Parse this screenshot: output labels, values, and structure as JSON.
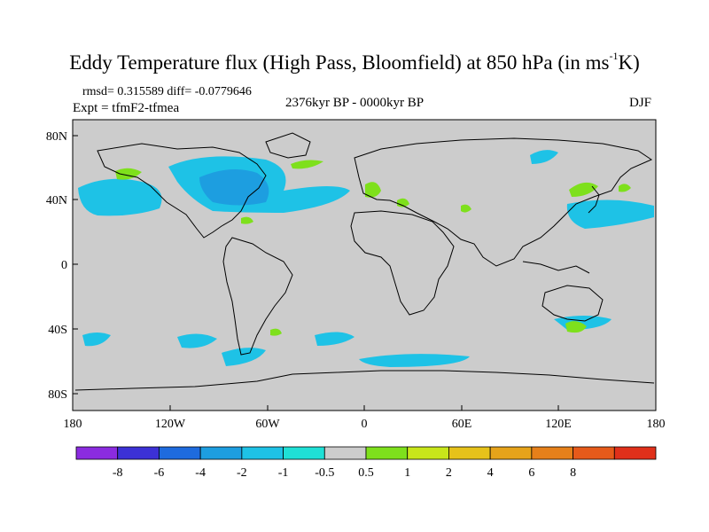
{
  "title": {
    "text_main": "Eddy Temperature flux (High Pass, Bloomfield) at 850 hPa (in ms",
    "superscript": "-1",
    "text_end": "K)"
  },
  "stats": "rmsd= 0.315589 diff= -0.0779646",
  "experiment": "Expt = tfmF2-tfmea",
  "period": "2376kyr BP - 0000kyr BP",
  "season": "DJF",
  "axes": {
    "x_ticks": [
      "180",
      "120W",
      "60W",
      "0",
      "60E",
      "120E",
      "180"
    ],
    "y_ticks": [
      "80N",
      "40N",
      "0",
      "40S",
      "80S"
    ]
  },
  "colorbar": {
    "colors": [
      "#8b2be0",
      "#3c31d6",
      "#1e6bde",
      "#1d9ee0",
      "#1ec2e6",
      "#1fe0d6",
      "#cccccc",
      "#7ee01c",
      "#c8e61a",
      "#e6c21a",
      "#e6a31a",
      "#e6801a",
      "#e65a1a",
      "#e0301a"
    ],
    "labels": [
      "-8",
      "-6",
      "-4",
      "-2",
      "-1",
      "-0.5",
      "0.5",
      "1",
      "2",
      "4",
      "6",
      "8"
    ]
  },
  "legend_colors": {
    "land_bg": "#cccccc",
    "negative": "#1ec2e6",
    "negative_strong": "#1d9ee0",
    "positive": "#7ee01c"
  }
}
